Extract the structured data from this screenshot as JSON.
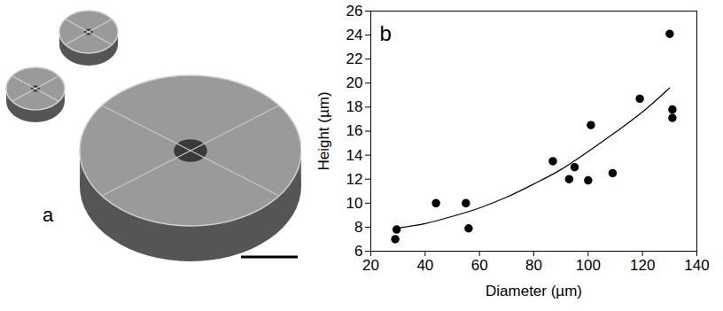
{
  "chart_data": {
    "type": "scatter",
    "panel_label": "b",
    "x_label": "Diameter (µm)",
    "y_label": "Height (µm)",
    "xlim": [
      20,
      140
    ],
    "xticks": [
      20,
      40,
      60,
      80,
      100,
      120,
      140
    ],
    "ylim": [
      6,
      26
    ],
    "yticks": [
      6,
      8,
      10,
      12,
      14,
      16,
      18,
      20,
      22,
      24,
      26
    ],
    "grid": false,
    "series": [
      {
        "type": "scatter",
        "marker": "circle",
        "color": "#000000",
        "x": [
          29,
          29.5,
          44,
          55,
          56,
          87,
          93,
          95,
          100,
          101,
          109,
          119,
          130,
          131,
          131
        ],
        "values": [
          7.0,
          7.8,
          10.0,
          10.0,
          7.9,
          13.5,
          12.0,
          13.0,
          11.9,
          16.5,
          12.5,
          18.7,
          24.1,
          17.8,
          17.1
        ]
      },
      {
        "type": "line",
        "line_style": "solid",
        "color": "#000000",
        "x": [
          29,
          40,
          50,
          60,
          70,
          80,
          90,
          100,
          110,
          120,
          130
        ],
        "values": [
          7.9,
          8.3,
          8.9,
          9.6,
          10.5,
          11.6,
          12.8,
          14.3,
          15.9,
          17.6,
          19.6
        ]
      }
    ]
  },
  "image_panel": {
    "label": "a"
  }
}
